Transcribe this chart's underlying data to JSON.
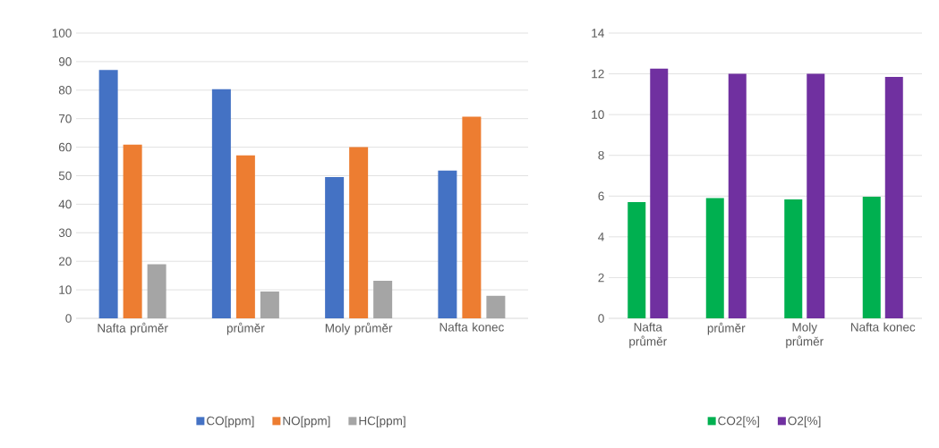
{
  "chart_data": [
    {
      "type": "bar",
      "categories": [
        "Nafta průměr",
        "průměr",
        "Moly průměr",
        "Nafta konec"
      ],
      "ylim": [
        0,
        100
      ],
      "yticks": [
        0,
        10,
        20,
        30,
        40,
        50,
        60,
        70,
        80,
        90,
        100
      ],
      "grid": "y",
      "legend": "bottom",
      "series": [
        {
          "name": "CO[ppm]",
          "color": "#4472c4",
          "values": [
            87.1,
            80.3,
            49.5,
            51.8
          ]
        },
        {
          "name": "NO[ppm]",
          "color": "#ed7d31",
          "values": [
            60.9,
            57.1,
            60.0,
            70.7
          ]
        },
        {
          "name": "HC[ppm]",
          "color": "#a5a5a5",
          "values": [
            19.0,
            9.4,
            13.2,
            7.9
          ]
        }
      ]
    },
    {
      "type": "bar",
      "categories": [
        "Nafta průměr",
        "průměr",
        "Moly průměr",
        "Nafta konec"
      ],
      "ylim": [
        0,
        14
      ],
      "yticks": [
        0,
        2,
        4,
        6,
        8,
        10,
        12,
        14
      ],
      "grid": "y",
      "legend": "bottom",
      "series": [
        {
          "name": "CO2[%]",
          "color": "#00b050",
          "values": [
            5.7,
            5.9,
            5.84,
            5.97
          ]
        },
        {
          "name": "O2[%]",
          "color": "#7030a0",
          "values": [
            12.26,
            12.0,
            12.0,
            11.85
          ]
        }
      ]
    }
  ]
}
